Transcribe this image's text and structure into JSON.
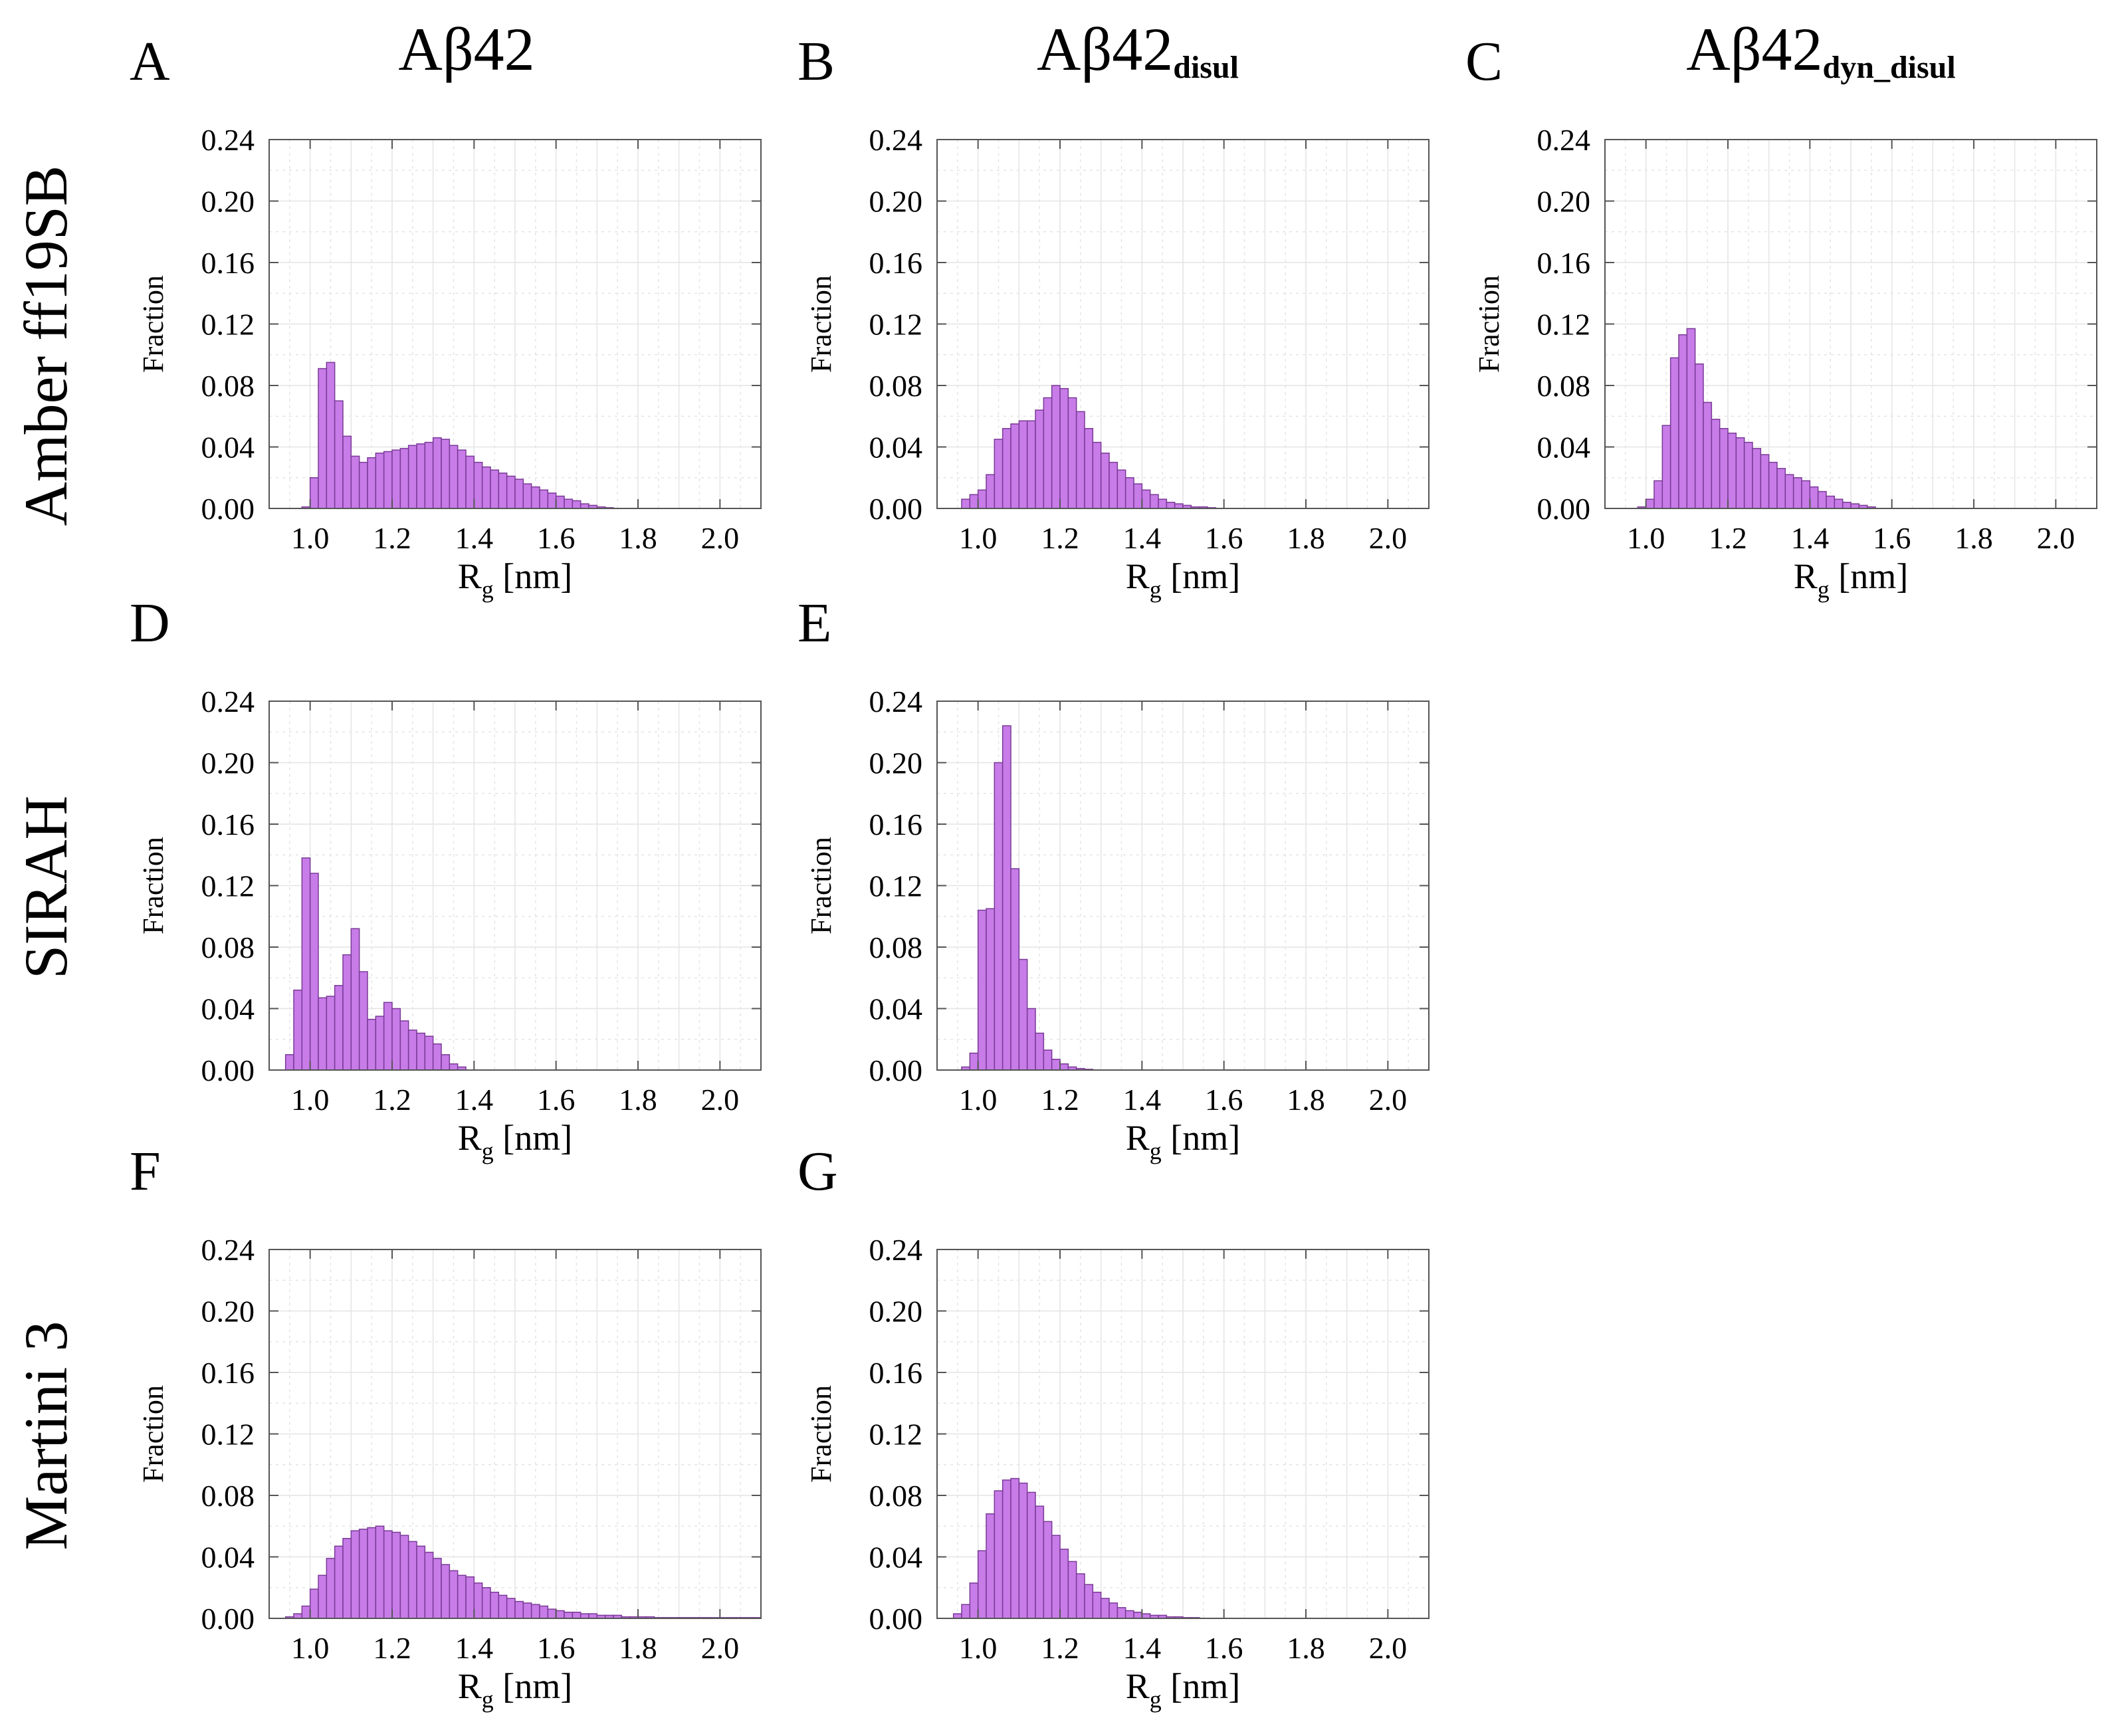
{
  "column_headers": [
    {
      "main": "Aβ42",
      "sub": ""
    },
    {
      "main": "Aβ42",
      "sub": "disul"
    },
    {
      "main": "Aβ42",
      "sub": "dyn_disul"
    }
  ],
  "row_labels": [
    "Amber ff19SB",
    "SIRAH",
    "Martini 3"
  ],
  "colors": {
    "bar_fill": "#c77ce8",
    "bar_stroke": "#7a3a96",
    "grid": "#d9d9d9",
    "axis": "#555555"
  },
  "chart_data": [
    {
      "panel": "A",
      "type": "bar",
      "row": "Amber ff19SB",
      "column": "Aβ42",
      "xlabel": "R",
      "xlabel_sub": "g",
      "xlabel_unit": " [nm]",
      "ylabel": "Fraction",
      "xlim": [
        0.9,
        2.1
      ],
      "ylim": [
        0,
        0.24
      ],
      "xticks": [
        "1.0",
        "1.2",
        "1.4",
        "1.6",
        "1.8",
        "2.0"
      ],
      "yticks": [
        "0.00",
        "0.04",
        "0.08",
        "0.12",
        "0.16",
        "0.20",
        "0.24"
      ],
      "bin_start": 0.98,
      "bin_width": 0.02,
      "values": [
        0.001,
        0.02,
        0.091,
        0.095,
        0.07,
        0.047,
        0.034,
        0.03,
        0.033,
        0.036,
        0.037,
        0.038,
        0.039,
        0.041,
        0.042,
        0.043,
        0.046,
        0.045,
        0.041,
        0.038,
        0.034,
        0.03,
        0.027,
        0.025,
        0.023,
        0.021,
        0.019,
        0.016,
        0.014,
        0.012,
        0.01,
        0.008,
        0.006,
        0.005,
        0.003,
        0.002,
        0.001,
        0.0005
      ]
    },
    {
      "panel": "B",
      "type": "bar",
      "row": "Amber ff19SB",
      "column": "Aβ42disul",
      "xlabel": "R",
      "xlabel_sub": "g",
      "xlabel_unit": " [nm]",
      "ylabel": "Fraction",
      "xlim": [
        0.9,
        2.1
      ],
      "ylim": [
        0,
        0.24
      ],
      "xticks": [
        "1.0",
        "1.2",
        "1.4",
        "1.6",
        "1.8",
        "2.0"
      ],
      "yticks": [
        "0.00",
        "0.04",
        "0.08",
        "0.12",
        "0.16",
        "0.20",
        "0.24"
      ],
      "bin_start": 0.96,
      "bin_width": 0.02,
      "values": [
        0.006,
        0.009,
        0.012,
        0.022,
        0.045,
        0.052,
        0.055,
        0.057,
        0.057,
        0.064,
        0.072,
        0.08,
        0.078,
        0.072,
        0.063,
        0.052,
        0.043,
        0.036,
        0.03,
        0.025,
        0.02,
        0.016,
        0.012,
        0.009,
        0.006,
        0.004,
        0.003,
        0.002,
        0.001,
        0.001,
        0.0005
      ]
    },
    {
      "panel": "C",
      "type": "bar",
      "row": "Amber ff19SB",
      "column": "Aβ42dyn_disul",
      "xlabel": "R",
      "xlabel_sub": "g",
      "xlabel_unit": " [nm]",
      "ylabel": "Fraction",
      "xlim": [
        0.9,
        2.1
      ],
      "ylim": [
        0,
        0.24
      ],
      "xticks": [
        "1.0",
        "1.2",
        "1.4",
        "1.6",
        "1.8",
        "2.0"
      ],
      "yticks": [
        "0.00",
        "0.04",
        "0.08",
        "0.12",
        "0.16",
        "0.20",
        "0.24"
      ],
      "bin_start": 0.98,
      "bin_width": 0.02,
      "values": [
        0.001,
        0.006,
        0.018,
        0.054,
        0.098,
        0.113,
        0.117,
        0.094,
        0.069,
        0.058,
        0.052,
        0.049,
        0.046,
        0.043,
        0.039,
        0.035,
        0.03,
        0.026,
        0.022,
        0.02,
        0.018,
        0.014,
        0.011,
        0.008,
        0.006,
        0.004,
        0.003,
        0.002,
        0.001
      ]
    },
    {
      "panel": "D",
      "type": "bar",
      "row": "SIRAH",
      "column": "Aβ42",
      "xlabel": "R",
      "xlabel_sub": "g",
      "xlabel_unit": " [nm]",
      "ylabel": "Fraction",
      "xlim": [
        0.9,
        2.1
      ],
      "ylim": [
        0,
        0.24
      ],
      "xticks": [
        "1.0",
        "1.2",
        "1.4",
        "1.6",
        "1.8",
        "2.0"
      ],
      "yticks": [
        "0.00",
        "0.04",
        "0.08",
        "0.12",
        "0.16",
        "0.20",
        "0.24"
      ],
      "bin_start": 0.94,
      "bin_width": 0.02,
      "values": [
        0.01,
        0.052,
        0.138,
        0.128,
        0.047,
        0.048,
        0.055,
        0.075,
        0.092,
        0.064,
        0.033,
        0.035,
        0.044,
        0.04,
        0.032,
        0.026,
        0.024,
        0.022,
        0.017,
        0.01,
        0.004,
        0.002
      ]
    },
    {
      "panel": "E",
      "type": "bar",
      "row": "SIRAH",
      "column": "Aβ42disul",
      "xlabel": "R",
      "xlabel_sub": "g",
      "xlabel_unit": " [nm]",
      "ylabel": "Fraction",
      "xlim": [
        0.9,
        2.1
      ],
      "ylim": [
        0,
        0.24
      ],
      "xticks": [
        "1.0",
        "1.2",
        "1.4",
        "1.6",
        "1.8",
        "2.0"
      ],
      "yticks": [
        "0.00",
        "0.04",
        "0.08",
        "0.12",
        "0.16",
        "0.20",
        "0.24"
      ],
      "bin_start": 0.96,
      "bin_width": 0.02,
      "values": [
        0.002,
        0.011,
        0.104,
        0.105,
        0.2,
        0.224,
        0.131,
        0.072,
        0.04,
        0.024,
        0.013,
        0.007,
        0.004,
        0.002,
        0.001,
        0.0005
      ]
    },
    {
      "panel": "F",
      "type": "bar",
      "row": "Martini 3",
      "column": "Aβ42",
      "xlabel": "R",
      "xlabel_sub": "g",
      "xlabel_unit": " [nm]",
      "ylabel": "Fraction",
      "xlim": [
        0.9,
        2.1
      ],
      "ylim": [
        0,
        0.24
      ],
      "xticks": [
        "1.0",
        "1.2",
        "1.4",
        "1.6",
        "1.8",
        "2.0"
      ],
      "yticks": [
        "0.00",
        "0.04",
        "0.08",
        "0.12",
        "0.16",
        "0.20",
        "0.24"
      ],
      "bin_start": 0.94,
      "bin_width": 0.02,
      "values": [
        0.001,
        0.003,
        0.008,
        0.019,
        0.028,
        0.039,
        0.047,
        0.052,
        0.057,
        0.058,
        0.059,
        0.06,
        0.057,
        0.056,
        0.054,
        0.05,
        0.047,
        0.043,
        0.039,
        0.035,
        0.031,
        0.028,
        0.027,
        0.023,
        0.02,
        0.017,
        0.015,
        0.013,
        0.011,
        0.01,
        0.009,
        0.008,
        0.006,
        0.005,
        0.004,
        0.004,
        0.003,
        0.003,
        0.002,
        0.002,
        0.002,
        0.001,
        0.001,
        0.001,
        0.001,
        0.0005,
        0.0005,
        0.0005,
        0.0005,
        0.0005,
        0.0005,
        0.0005,
        0.0005,
        0.0005,
        0.0005,
        0.0005,
        0.0005,
        0.0005
      ]
    },
    {
      "panel": "G",
      "type": "bar",
      "row": "Martini 3",
      "column": "Aβ42disul",
      "xlabel": "R",
      "xlabel_sub": "g",
      "xlabel_unit": " [nm]",
      "ylabel": "Fraction",
      "xlim": [
        0.9,
        2.1
      ],
      "ylim": [
        0,
        0.24
      ],
      "xticks": [
        "1.0",
        "1.2",
        "1.4",
        "1.6",
        "1.8",
        "2.0"
      ],
      "yticks": [
        "0.00",
        "0.04",
        "0.08",
        "0.12",
        "0.16",
        "0.20",
        "0.24"
      ],
      "bin_start": 0.94,
      "bin_width": 0.02,
      "values": [
        0.003,
        0.009,
        0.023,
        0.044,
        0.068,
        0.083,
        0.09,
        0.091,
        0.088,
        0.082,
        0.073,
        0.063,
        0.054,
        0.045,
        0.037,
        0.029,
        0.022,
        0.017,
        0.013,
        0.01,
        0.007,
        0.005,
        0.004,
        0.003,
        0.002,
        0.002,
        0.001,
        0.001,
        0.0005,
        0.0005
      ]
    }
  ]
}
